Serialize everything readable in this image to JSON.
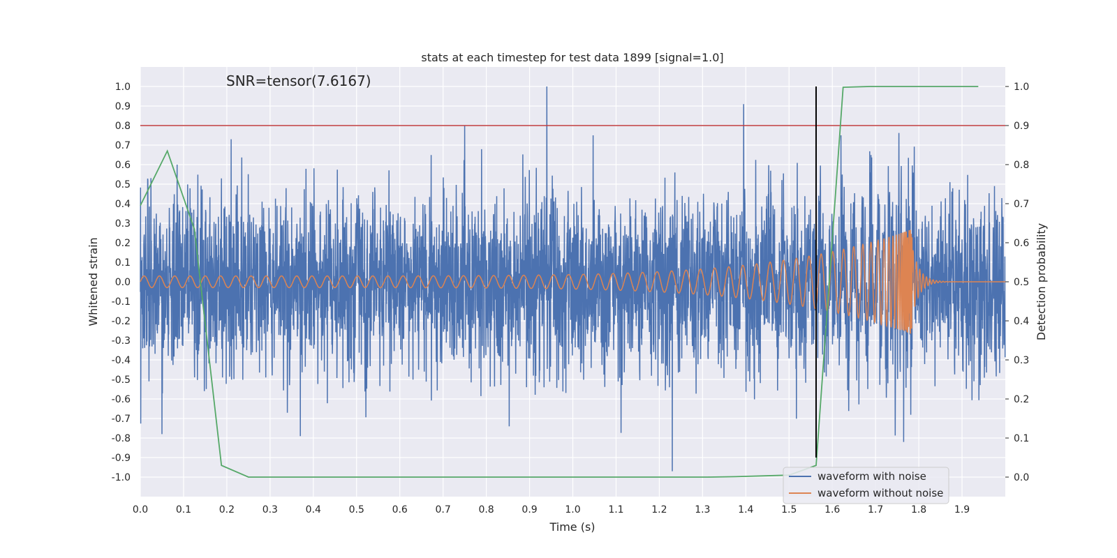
{
  "chart_data": {
    "type": "line",
    "title": "stats at each timestep for test data 1899 [signal=1.0]",
    "xlabel": "Time (s)",
    "ylabel": "Whitened strain",
    "y2label": "Detection probability",
    "xlim": [
      0.0,
      2.0
    ],
    "ylim": [
      -1.1,
      1.1
    ],
    "y2lim": [
      -0.05,
      1.05
    ],
    "xticks": [
      0.0,
      0.1,
      0.2,
      0.3,
      0.4,
      0.5,
      0.6,
      0.7,
      0.8,
      0.9,
      1.0,
      1.1,
      1.2,
      1.3,
      1.4,
      1.5,
      1.6,
      1.7,
      1.8,
      1.9
    ],
    "xtick_labels": [
      "0.0",
      "0.1",
      "0.2",
      "0.3",
      "0.4",
      "0.5",
      "0.6",
      "0.7",
      "0.8",
      "0.9",
      "1.0",
      "1.1",
      "1.2",
      "1.3",
      "1.4",
      "1.5",
      "1.6",
      "1.7",
      "1.8",
      "1.9"
    ],
    "yticks": [
      1.0,
      0.9,
      0.8,
      0.7,
      0.6,
      0.5,
      0.4,
      0.3,
      0.2,
      0.1,
      0.0,
      -0.1,
      -0.2,
      -0.3,
      -0.4,
      -0.5,
      -0.6,
      -0.7,
      -0.8,
      -0.9,
      -1.0
    ],
    "ytick_labels": [
      "1.0",
      "0.9",
      "0.8",
      "0.7",
      "0.6",
      "0.5",
      "0.4",
      "0.3",
      "0.2",
      "0.1",
      "0.0",
      "-0.1",
      "-0.2",
      "-0.3",
      "-0.4",
      "-0.5",
      "-0.6",
      "-0.7",
      "-0.8",
      "-0.9",
      "-1.0"
    ],
    "y2ticks": [
      1.0,
      0.9,
      0.8,
      0.7,
      0.6,
      0.5,
      0.4,
      0.3,
      0.2,
      0.1,
      0.0
    ],
    "y2tick_labels": [
      "1.0",
      "0.9",
      "0.8",
      "0.7",
      "0.6",
      "0.5",
      "0.4",
      "0.3",
      "0.2",
      "0.1",
      "0.0"
    ],
    "grid": true,
    "annotation": "SNR=tensor(7.6167)",
    "threshold_line": {
      "y2": 0.9,
      "color": "#c03d3e"
    },
    "event_marker": {
      "x": 1.5625,
      "y_range": [
        -0.9,
        1.0
      ],
      "color": "#000000"
    },
    "series": [
      {
        "name": "waveform with noise",
        "color": "#4c72b0",
        "kind": "noise",
        "n_samples": 4000,
        "sigma": 0.22,
        "seed": 1899,
        "notable_peaks": [
          {
            "x": 0.94,
            "y": 1.0
          },
          {
            "x": 1.395,
            "y": 0.91
          },
          {
            "x": 0.75,
            "y": 0.8
          },
          {
            "x": 1.23,
            "y": -0.97
          },
          {
            "x": 1.62,
            "y": 0.75
          },
          {
            "x": 1.765,
            "y": -0.82
          },
          {
            "x": 0.37,
            "y": -0.79
          },
          {
            "x": 0.085,
            "y": 0.6
          },
          {
            "x": 0.21,
            "y": 0.73
          },
          {
            "x": 0.05,
            "y": -0.78
          }
        ]
      },
      {
        "name": "waveform without noise",
        "color": "#dd8452",
        "kind": "chirp",
        "merger_time": 1.785,
        "base_amplitude": 0.03,
        "peak_amplitude": 0.27,
        "base_frequency": 28,
        "merger_frequency": 130
      },
      {
        "name": "detection probability",
        "color": "#55a868",
        "axis": "right",
        "x": [
          0.0,
          0.0625,
          0.125,
          0.1875,
          0.25,
          0.3125,
          0.375,
          0.4375,
          0.5,
          0.5625,
          0.625,
          0.6875,
          0.75,
          0.8125,
          0.875,
          0.9375,
          1.0,
          1.0625,
          1.125,
          1.1875,
          1.25,
          1.3125,
          1.375,
          1.4375,
          1.5,
          1.5625,
          1.625,
          1.6875,
          1.75,
          1.8125,
          1.875,
          1.9375
        ],
        "values": [
          0.695,
          0.835,
          0.635,
          0.03,
          0.0,
          0.0,
          0.0,
          0.0,
          0.0,
          0.0,
          0.0,
          0.0,
          0.0,
          0.0,
          0.0,
          0.0,
          0.0,
          0.0,
          0.0,
          0.0,
          0.0,
          0.0,
          0.001,
          0.003,
          0.005,
          0.03,
          0.998,
          1.0,
          1.0,
          1.0,
          1.0,
          1.0
        ]
      }
    ],
    "legend": {
      "position": "lower-right",
      "entries": [
        {
          "label": "waveform with noise",
          "color": "#4c72b0"
        },
        {
          "label": "waveform without noise",
          "color": "#dd8452"
        }
      ]
    }
  }
}
